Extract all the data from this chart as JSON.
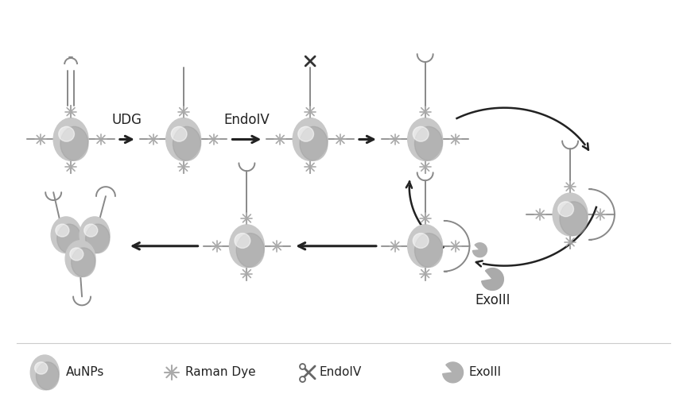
{
  "background_color": "#ffffff",
  "particle_color_light": "#d8d8d8",
  "particle_color_mid": "#b8b8b8",
  "particle_color_dark": "#909090",
  "line_color": "#888888",
  "arrow_color": "#222222",
  "text_color": "#222222",
  "star_color": "#aaaaaa",
  "dna_line_color": "#999999",
  "label_UDG": "UDG",
  "label_EndoIV": "EndoIV",
  "label_ExoIII": "ExoIII",
  "legend_labels": [
    "AuNPs",
    "Raman Dye",
    "EndoIV",
    "ExoIII"
  ]
}
